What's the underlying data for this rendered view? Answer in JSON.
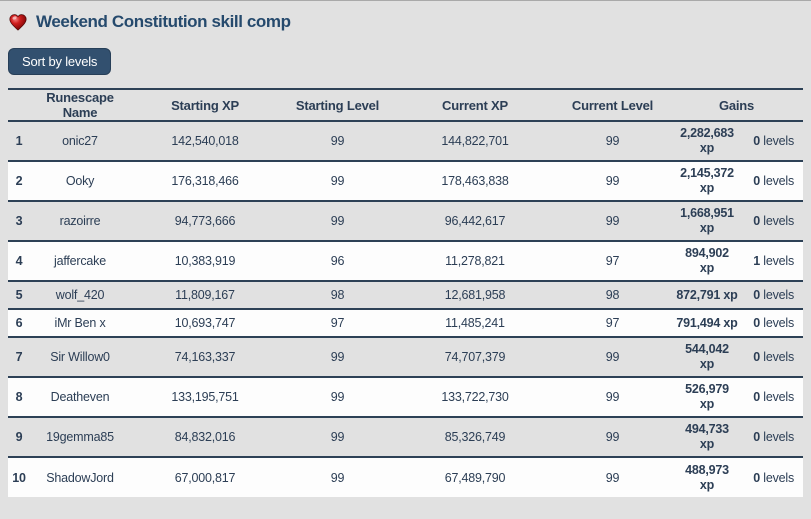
{
  "page": {
    "title": "Weekend Constitution skill comp",
    "heart_icon": "glossy-red-heart",
    "sort_button_label": "Sort by levels"
  },
  "colors": {
    "page_background": "#e1e1e1",
    "row_alt_background": "#fdfdfd",
    "accent_navy": "#2d4156",
    "text_navy": "#2c3e55",
    "title_blue": "#264a6d",
    "button_background": "#32506f",
    "button_text": "#ffffff",
    "heart_red": "#b01111"
  },
  "table": {
    "headers": {
      "name": "Runescape Name",
      "starting_xp": "Starting XP",
      "starting_level": "Starting Level",
      "current_xp": "Current XP",
      "current_level": "Current Level",
      "gains": "Gains"
    },
    "rows": [
      {
        "rank": "1",
        "name": "onic27",
        "starting_xp": "142,540,018",
        "starting_level": "99",
        "current_xp": "144,822,701",
        "current_level": "99",
        "gains_xp": "2,282,683\nxp",
        "gains_levels_value": "0",
        "gains_levels_unit": "levels"
      },
      {
        "rank": "2",
        "name": "Ooky",
        "starting_xp": "176,318,466",
        "starting_level": "99",
        "current_xp": "178,463,838",
        "current_level": "99",
        "gains_xp": "2,145,372\nxp",
        "gains_levels_value": "0",
        "gains_levels_unit": "levels"
      },
      {
        "rank": "3",
        "name": "razoirre",
        "starting_xp": "94,773,666",
        "starting_level": "99",
        "current_xp": "96,442,617",
        "current_level": "99",
        "gains_xp": "1,668,951\nxp",
        "gains_levels_value": "0",
        "gains_levels_unit": "levels"
      },
      {
        "rank": "4",
        "name": "jaffercake",
        "starting_xp": "10,383,919",
        "starting_level": "96",
        "current_xp": "11,278,821",
        "current_level": "97",
        "gains_xp": "894,902\nxp",
        "gains_levels_value": "1",
        "gains_levels_unit": "levels"
      },
      {
        "rank": "5",
        "name": "wolf_420",
        "starting_xp": "11,809,167",
        "starting_level": "98",
        "current_xp": "12,681,958",
        "current_level": "98",
        "gains_xp": "872,791 xp",
        "gains_levels_value": "0",
        "gains_levels_unit": "levels"
      },
      {
        "rank": "6",
        "name": "iMr Ben x",
        "starting_xp": "10,693,747",
        "starting_level": "97",
        "current_xp": "11,485,241",
        "current_level": "97",
        "gains_xp": "791,494 xp",
        "gains_levels_value": "0",
        "gains_levels_unit": "levels"
      },
      {
        "rank": "7",
        "name": "Sir Willow0",
        "starting_xp": "74,163,337",
        "starting_level": "99",
        "current_xp": "74,707,379",
        "current_level": "99",
        "gains_xp": "544,042\nxp",
        "gains_levels_value": "0",
        "gains_levels_unit": "levels"
      },
      {
        "rank": "8",
        "name": "Deatheven",
        "starting_xp": "133,195,751",
        "starting_level": "99",
        "current_xp": "133,722,730",
        "current_level": "99",
        "gains_xp": "526,979\nxp",
        "gains_levels_value": "0",
        "gains_levels_unit": "levels"
      },
      {
        "rank": "9",
        "name": "19gemma85",
        "starting_xp": "84,832,016",
        "starting_level": "99",
        "current_xp": "85,326,749",
        "current_level": "99",
        "gains_xp": "494,733\nxp",
        "gains_levels_value": "0",
        "gains_levels_unit": "levels"
      },
      {
        "rank": "10",
        "name": "ShadowJord",
        "starting_xp": "67,000,817",
        "starting_level": "99",
        "current_xp": "67,489,790",
        "current_level": "99",
        "gains_xp": "488,973\nxp",
        "gains_levels_value": "0",
        "gains_levels_unit": "levels"
      }
    ]
  }
}
